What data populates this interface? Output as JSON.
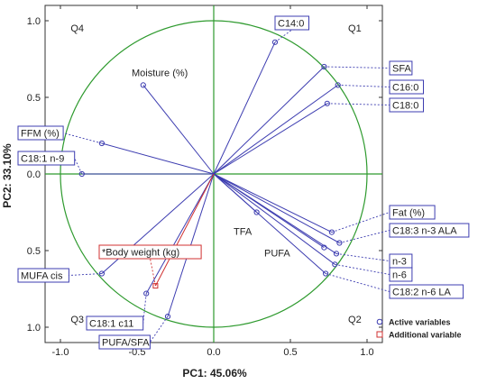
{
  "chart_data": {
    "type": "scatter",
    "title": "",
    "xlabel": "PC1: 45.06%",
    "ylabel": "PC2: 33.10%",
    "xlim": [
      -1.1,
      1.1
    ],
    "ylim": [
      -1.1,
      1.1
    ],
    "x_ticks": [
      "-1.0",
      "-0.5",
      "0.0",
      "0.5",
      "1.0"
    ],
    "y_ticks": [
      "1.0",
      "0.5",
      "0.0",
      "0.5",
      "1.0"
    ],
    "quadrants": [
      "Q1",
      "Q2",
      "Q3",
      "Q4"
    ],
    "legend": {
      "position": "bottom-right",
      "entries": [
        "Active variables",
        "Additional variable"
      ]
    },
    "colors": {
      "active": "#3c3cb0",
      "additional": "#d03030",
      "circle": "#2e9a2e",
      "axis": "#2e9a2e"
    },
    "active_variables": [
      {
        "label": "C14:0",
        "x": 0.4,
        "y": 0.86
      },
      {
        "label": "SFA",
        "x": 0.72,
        "y": 0.7
      },
      {
        "label": "C16:0",
        "x": 0.81,
        "y": 0.58
      },
      {
        "label": "C18:0",
        "x": 0.74,
        "y": 0.46
      },
      {
        "label": "Moisture (%)",
        "x": -0.46,
        "y": 0.58
      },
      {
        "label": "FFM (%)",
        "x": -0.73,
        "y": 0.2
      },
      {
        "label": "C18:1 n-9",
        "x": -0.86,
        "y": 0.0
      },
      {
        "label": "TFA",
        "x": 0.28,
        "y": -0.25
      },
      {
        "label": "Fat (%)",
        "x": 0.77,
        "y": -0.38
      },
      {
        "label": "C18:3 n-3 ALA",
        "x": 0.82,
        "y": -0.45
      },
      {
        "label": "PUFA",
        "x": 0.72,
        "y": -0.48
      },
      {
        "label": "n-3",
        "x": 0.8,
        "y": -0.52
      },
      {
        "label": "n-6",
        "x": 0.79,
        "y": -0.59
      },
      {
        "label": "C18:2 n-6 LA",
        "x": 0.73,
        "y": -0.65
      },
      {
        "label": "MUFA cis",
        "x": -0.73,
        "y": -0.65
      },
      {
        "label": "C18:1 c11",
        "x": -0.44,
        "y": -0.78
      },
      {
        "label": "PUFA/SFA",
        "x": -0.3,
        "y": -0.93
      }
    ],
    "additional_variables": [
      {
        "label": "*Body weight (kg)",
        "x": -0.38,
        "y": -0.73
      }
    ]
  }
}
